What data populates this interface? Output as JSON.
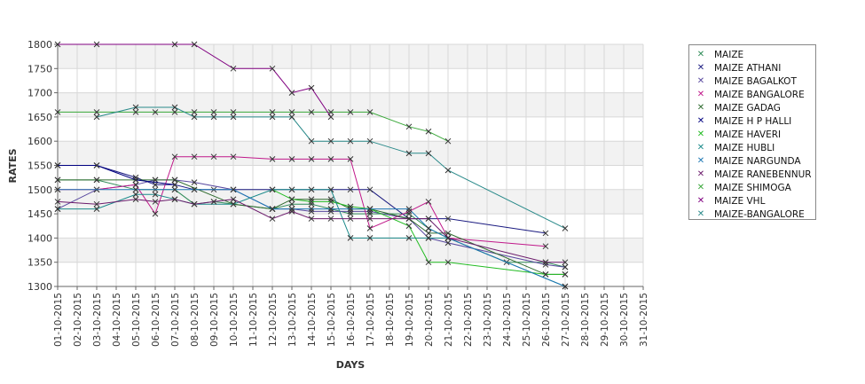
{
  "chart_data": {
    "type": "line",
    "title": "",
    "xlabel": "DAYS",
    "ylabel": "RATES",
    "ylim": [
      1300,
      1800
    ],
    "yticks": [
      1300,
      1350,
      1400,
      1450,
      1500,
      1550,
      1600,
      1650,
      1700,
      1750,
      1800
    ],
    "categories": [
      "01-10-2015",
      "02-10-2015",
      "03-10-2015",
      "04-10-2015",
      "05-10-2015",
      "06-10-2015",
      "07-10-2015",
      "08-10-2015",
      "09-10-2015",
      "10-10-2015",
      "11-10-2015",
      "12-10-2015",
      "13-10-2015",
      "14-10-2015",
      "15-10-2015",
      "16-10-2015",
      "17-10-2015",
      "18-10-2015",
      "19-10-2015",
      "20-10-2015",
      "21-10-2015",
      "22-10-2015",
      "23-10-2015",
      "24-10-2015",
      "25-10-2015",
      "26-10-2015",
      "27-10-2015",
      "28-10-2015",
      "29-10-2015",
      "30-10-2015",
      "31-10-2015"
    ],
    "grid": true,
    "legend_position": "right",
    "series": [
      {
        "name": "MAIZE",
        "color": "#2e8b57",
        "points": [
          [
            1,
            1520
          ],
          [
            3,
            1520
          ],
          [
            5,
            1500
          ],
          [
            6,
            1500
          ],
          [
            7,
            1500
          ],
          [
            8,
            1470
          ],
          [
            9,
            1475
          ],
          [
            10,
            1470
          ],
          [
            12,
            1460
          ],
          [
            13,
            1470
          ],
          [
            14,
            1470
          ],
          [
            15,
            1460
          ],
          [
            16,
            1450
          ],
          [
            17,
            1450
          ],
          [
            19,
            1450
          ],
          [
            20,
            1420
          ],
          [
            21,
            1400
          ],
          [
            24,
            1350
          ],
          [
            26,
            1350
          ],
          [
            27,
            1340
          ]
        ]
      },
      {
        "name": "MAIZE ATHANI",
        "color": "#1a1a80",
        "points": [
          [
            1,
            1550
          ],
          [
            3,
            1550
          ],
          [
            5,
            1525
          ],
          [
            6,
            1510
          ],
          [
            7,
            1510
          ],
          [
            8,
            1500
          ],
          [
            9,
            1500
          ],
          [
            10,
            1500
          ],
          [
            12,
            1500
          ],
          [
            13,
            1500
          ],
          [
            14,
            1500
          ],
          [
            15,
            1500
          ],
          [
            16,
            1500
          ],
          [
            17,
            1500
          ],
          [
            19,
            1440
          ],
          [
            20,
            1440
          ],
          [
            21,
            1440
          ],
          [
            26,
            1410
          ]
        ]
      },
      {
        "name": "MAIZE BAGALKOT",
        "color": "#5a4aa0",
        "points": [
          [
            1,
            1460
          ],
          [
            3,
            1500
          ],
          [
            5,
            1510
          ],
          [
            6,
            1520
          ],
          [
            7,
            1520
          ],
          [
            8,
            1515
          ],
          [
            10,
            1500
          ],
          [
            12,
            1460
          ],
          [
            13,
            1460
          ],
          [
            14,
            1455
          ],
          [
            15,
            1455
          ],
          [
            16,
            1455
          ],
          [
            17,
            1455
          ],
          [
            19,
            1440
          ],
          [
            20,
            1400
          ],
          [
            21,
            1390
          ],
          [
            26,
            1345
          ],
          [
            27,
            1340
          ]
        ]
      },
      {
        "name": "MAIZE BANGALORE",
        "color": "#c0188a",
        "points": [
          [
            1,
            1500
          ],
          [
            3,
            1500
          ],
          [
            5,
            1510
          ],
          [
            6,
            1450
          ],
          [
            7,
            1568
          ],
          [
            8,
            1568
          ],
          [
            9,
            1568
          ],
          [
            10,
            1568
          ],
          [
            12,
            1563
          ],
          [
            13,
            1563
          ],
          [
            14,
            1563
          ],
          [
            15,
            1563
          ],
          [
            16,
            1563
          ],
          [
            17,
            1420
          ],
          [
            19,
            1455
          ],
          [
            20,
            1475
          ],
          [
            21,
            1400
          ],
          [
            26,
            1383
          ]
        ]
      },
      {
        "name": "MAIZE GADAG",
        "color": "#2e6b2e",
        "points": [
          [
            1,
            1520
          ],
          [
            3,
            1520
          ],
          [
            5,
            1520
          ],
          [
            6,
            1520
          ],
          [
            7,
            1520
          ],
          [
            10,
            1470
          ],
          [
            12,
            1460
          ],
          [
            13,
            1480
          ],
          [
            14,
            1480
          ],
          [
            15,
            1480
          ],
          [
            16,
            1460
          ],
          [
            17,
            1460
          ],
          [
            19,
            1440
          ],
          [
            20,
            1410
          ],
          [
            21,
            1410
          ],
          [
            26,
            1325
          ],
          [
            27,
            1325
          ]
        ]
      },
      {
        "name": "MAIZE H P HALLI",
        "color": "#000080",
        "points": [
          [
            1,
            1550
          ],
          [
            3,
            1550
          ],
          [
            5,
            1520
          ],
          [
            7,
            1510
          ]
        ]
      },
      {
        "name": "MAIZE HAVERI",
        "color": "#22bb22",
        "points": [
          [
            12,
            1500
          ],
          [
            13,
            1480
          ],
          [
            14,
            1475
          ],
          [
            15,
            1475
          ],
          [
            16,
            1465
          ],
          [
            17,
            1460
          ],
          [
            19,
            1425
          ],
          [
            20,
            1350
          ],
          [
            21,
            1350
          ],
          [
            26,
            1325
          ],
          [
            27,
            1325
          ]
        ]
      },
      {
        "name": "MAIZE HUBLI",
        "color": "#1b8a8a",
        "points": [
          [
            1,
            1460
          ],
          [
            3,
            1460
          ],
          [
            5,
            1490
          ],
          [
            6,
            1490
          ],
          [
            7,
            1480
          ],
          [
            8,
            1470
          ],
          [
            10,
            1470
          ],
          [
            12,
            1500
          ],
          [
            13,
            1500
          ],
          [
            14,
            1500
          ],
          [
            15,
            1500
          ],
          [
            16,
            1400
          ],
          [
            17,
            1400
          ],
          [
            19,
            1400
          ],
          [
            20,
            1400
          ],
          [
            21,
            1400
          ],
          [
            27,
            1300
          ]
        ]
      },
      {
        "name": "MAIZE NARGUNDA",
        "color": "#1e78b4",
        "points": [
          [
            1,
            1500
          ],
          [
            5,
            1500
          ],
          [
            7,
            1500
          ],
          [
            8,
            1500
          ],
          [
            10,
            1500
          ],
          [
            12,
            1460
          ],
          [
            13,
            1460
          ],
          [
            14,
            1460
          ],
          [
            15,
            1460
          ],
          [
            16,
            1460
          ],
          [
            17,
            1460
          ],
          [
            19,
            1460
          ],
          [
            20,
            1420
          ],
          [
            21,
            1400
          ],
          [
            27,
            1300
          ]
        ]
      },
      {
        "name": "MAIZE RANEBENNUR",
        "color": "#6b1a6b",
        "points": [
          [
            1,
            1475
          ],
          [
            3,
            1470
          ],
          [
            5,
            1480
          ],
          [
            6,
            1475
          ],
          [
            7,
            1480
          ],
          [
            8,
            1470
          ],
          [
            9,
            1475
          ],
          [
            10,
            1480
          ],
          [
            12,
            1440
          ],
          [
            13,
            1455
          ],
          [
            14,
            1440
          ],
          [
            15,
            1440
          ],
          [
            16,
            1440
          ],
          [
            17,
            1440
          ],
          [
            19,
            1440
          ],
          [
            20,
            1440
          ],
          [
            21,
            1400
          ],
          [
            26,
            1350
          ],
          [
            27,
            1350
          ]
        ]
      },
      {
        "name": "MAIZE SHIMOGA",
        "color": "#3aa83a",
        "points": [
          [
            1,
            1660
          ],
          [
            3,
            1660
          ],
          [
            5,
            1660
          ],
          [
            6,
            1660
          ],
          [
            7,
            1660
          ],
          [
            8,
            1660
          ],
          [
            9,
            1660
          ],
          [
            10,
            1660
          ],
          [
            12,
            1660
          ],
          [
            13,
            1660
          ],
          [
            14,
            1660
          ],
          [
            15,
            1660
          ],
          [
            16,
            1660
          ],
          [
            17,
            1660
          ],
          [
            19,
            1630
          ],
          [
            20,
            1620
          ],
          [
            21,
            1600
          ]
        ]
      },
      {
        "name": "MAIZE VHL",
        "color": "#800080",
        "points": [
          [
            1,
            1800
          ],
          [
            3,
            1800
          ],
          [
            7,
            1800
          ],
          [
            8,
            1800
          ],
          [
            10,
            1750
          ],
          [
            12,
            1750
          ],
          [
            13,
            1700
          ],
          [
            14,
            1710
          ],
          [
            15,
            1650
          ]
        ]
      },
      {
        "name": "MAIZE-BANGALORE",
        "color": "#2a8a8a",
        "points": [
          [
            3,
            1650
          ],
          [
            5,
            1670
          ],
          [
            7,
            1670
          ],
          [
            8,
            1650
          ],
          [
            9,
            1650
          ],
          [
            10,
            1650
          ],
          [
            12,
            1650
          ],
          [
            13,
            1650
          ],
          [
            14,
            1600
          ],
          [
            15,
            1600
          ],
          [
            16,
            1600
          ],
          [
            17,
            1600
          ],
          [
            19,
            1575
          ],
          [
            20,
            1575
          ],
          [
            21,
            1540
          ],
          [
            27,
            1420
          ]
        ]
      }
    ]
  }
}
